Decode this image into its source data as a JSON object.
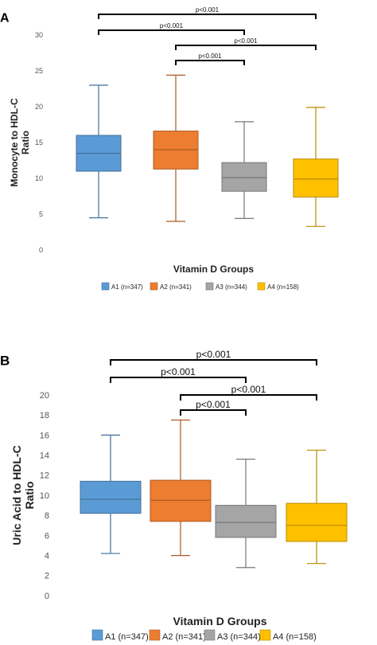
{
  "chart_data": [
    {
      "panel_label": "A",
      "type": "box",
      "ylabel": "Monocyte to HDL-C Ratio",
      "xlabel": "Vitamin D Groups",
      "ylim": [
        0,
        30
      ],
      "yticks": [
        0,
        5,
        10,
        15,
        20,
        25,
        30
      ],
      "grid": false,
      "legend_position": "bottom",
      "groups": [
        {
          "name": "A1 (n=347)",
          "color": "#5B9BD5",
          "min": 4.5,
          "q1": 11.0,
          "median": 13.5,
          "q3": 16.0,
          "max": 23.0
        },
        {
          "name": "A2 (n=341)",
          "color": "#ED7D31",
          "min": 4.0,
          "q1": 11.3,
          "median": 14.0,
          "q3": 16.6,
          "max": 24.4
        },
        {
          "name": "A3 (n=344)",
          "color": "#A5A5A5",
          "min": 4.4,
          "q1": 8.2,
          "median": 10.1,
          "q3": 12.2,
          "max": 17.9
        },
        {
          "name": "A4 (n=158)",
          "color": "#FFC000",
          "min": 3.3,
          "q1": 7.4,
          "median": 9.9,
          "q3": 12.7,
          "max": 19.9
        }
      ],
      "significance": [
        {
          "from": 0,
          "to": 3,
          "label": "p<0.001"
        },
        {
          "from": 0,
          "to": 2,
          "label": "p<0.001"
        },
        {
          "from": 1,
          "to": 3,
          "label": "p<0.001"
        },
        {
          "from": 1,
          "to": 2,
          "label": "p<0.001"
        }
      ]
    },
    {
      "panel_label": "B",
      "type": "box",
      "ylabel": "Uric Acid to HDL-C Ratio",
      "xlabel": "Vitamin D Groups",
      "ylim": [
        0,
        20
      ],
      "yticks": [
        0,
        2,
        4,
        6,
        8,
        10,
        12,
        14,
        16,
        18,
        20
      ],
      "grid": false,
      "legend_position": "bottom",
      "groups": [
        {
          "name": "A1 (n=347)",
          "color": "#5B9BD5",
          "min": 4.2,
          "q1": 8.2,
          "median": 9.6,
          "q3": 11.4,
          "max": 16.0
        },
        {
          "name": "A2 (n=341)",
          "color": "#ED7D31",
          "min": 4.0,
          "q1": 7.4,
          "median": 9.5,
          "q3": 11.5,
          "max": 17.5
        },
        {
          "name": "A3 (n=344)",
          "color": "#A5A5A5",
          "min": 2.8,
          "q1": 5.8,
          "median": 7.3,
          "q3": 9.0,
          "max": 13.6
        },
        {
          "name": "A4 (n=158)",
          "color": "#FFC000",
          "min": 3.2,
          "q1": 5.4,
          "median": 7.0,
          "q3": 9.2,
          "max": 14.5
        }
      ],
      "significance": [
        {
          "from": 0,
          "to": 3,
          "label": "p<0.001"
        },
        {
          "from": 0,
          "to": 2,
          "label": "p<0.001"
        },
        {
          "from": 1,
          "to": 3,
          "label": "p<0.001"
        },
        {
          "from": 1,
          "to": 2,
          "label": "p<0.001"
        }
      ]
    }
  ]
}
